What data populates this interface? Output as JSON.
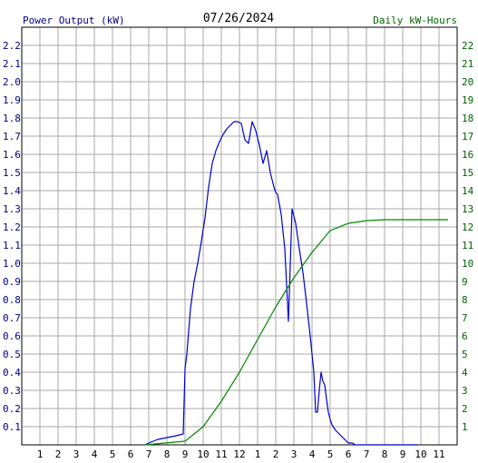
{
  "chart_data": {
    "type": "line",
    "title": "07/26/2024",
    "left_axis_label": "Power Output (kW)",
    "right_axis_label": "Daily kW-Hours",
    "x_ticks": [
      "1",
      "2",
      "3",
      "4",
      "5",
      "6",
      "7",
      "8",
      "9",
      "10",
      "11",
      "12",
      "1",
      "2",
      "3",
      "4",
      "5",
      "6",
      "7",
      "8",
      "9",
      "10",
      "11"
    ],
    "x_range_hours": [
      0,
      24
    ],
    "left_ylim": [
      0,
      2.3
    ],
    "left_ticks": [
      "0.1",
      "0.2",
      "0.3",
      "0.4",
      "0.5",
      "0.6",
      "0.7",
      "0.8",
      "0.9",
      "1.0",
      "1.1",
      "1.2",
      "1.3",
      "1.4",
      "1.5",
      "1.6",
      "1.7",
      "1.8",
      "1.9",
      "2.0",
      "2.1",
      "2.2"
    ],
    "right_ylim": [
      0,
      23
    ],
    "right_ticks": [
      "1",
      "2",
      "3",
      "4",
      "5",
      "6",
      "7",
      "8",
      "9",
      "10",
      "11",
      "12",
      "13",
      "14",
      "15",
      "16",
      "17",
      "18",
      "19",
      "20",
      "21",
      "22"
    ],
    "grid": true,
    "colors": {
      "power": "#0000cc",
      "energy": "#008800",
      "left_axis_text": "#000080",
      "right_axis_text": "#006400",
      "grid": "#aaaaaa"
    },
    "series": [
      {
        "axis": "left",
        "hours": [
          6.8,
          7.0,
          7.5,
          8.0,
          8.5,
          8.9,
          9.0,
          9.1,
          9.3,
          9.5,
          9.7,
          9.9,
          10.1,
          10.3,
          10.5,
          10.7,
          10.9,
          11.1,
          11.3,
          11.5,
          11.7,
          11.9,
          12.1,
          12.3,
          12.5,
          12.7,
          12.9,
          13.1,
          13.3,
          13.5,
          13.7,
          13.9,
          14.0,
          14.1,
          14.3,
          14.5,
          14.7,
          14.9,
          15.1,
          15.3,
          15.5,
          15.7,
          15.9,
          16.1,
          16.2,
          16.3,
          16.4,
          16.5,
          16.6,
          16.7,
          16.8,
          16.9,
          17.0,
          17.1,
          17.3,
          17.5,
          17.7,
          17.9,
          18.0,
          18.2,
          18.4,
          18.5,
          18.6,
          18.7,
          18.8,
          18.9,
          19.0,
          19.2,
          19.4,
          19.6,
          19.8,
          20.0,
          20.3,
          20.6,
          21.0,
          21.5,
          21.8
        ],
        "values": [
          0.0,
          0.01,
          0.03,
          0.04,
          0.05,
          0.06,
          0.42,
          0.5,
          0.75,
          0.9,
          1.0,
          1.12,
          1.25,
          1.42,
          1.55,
          1.62,
          1.67,
          1.71,
          1.74,
          1.76,
          1.78,
          1.78,
          1.77,
          1.68,
          1.66,
          1.78,
          1.73,
          1.65,
          1.55,
          1.62,
          1.5,
          1.42,
          1.39,
          1.38,
          1.27,
          1.08,
          0.68,
          1.3,
          1.22,
          1.08,
          0.95,
          0.78,
          0.6,
          0.4,
          0.18,
          0.18,
          0.3,
          0.4,
          0.35,
          0.33,
          0.25,
          0.18,
          0.14,
          0.11,
          0.08,
          0.06,
          0.04,
          0.02,
          0.01,
          0.01,
          0.0,
          0.0,
          0.0,
          0.0,
          0.0,
          0.0,
          0.0,
          0.0,
          0.0,
          0.0,
          0.0,
          0.0,
          0.0,
          0.0,
          0.0,
          0.0,
          0.0
        ]
      },
      {
        "axis": "right",
        "hours": [
          6.8,
          9.0,
          10.0,
          11.0,
          12.0,
          13.0,
          14.0,
          15.0,
          16.0,
          17.0,
          18.0,
          19.0,
          20.0,
          21.0,
          22.0,
          23.5
        ],
        "values": [
          0.0,
          0.2,
          1.0,
          2.4,
          4.0,
          5.8,
          7.6,
          9.2,
          10.6,
          11.8,
          12.2,
          12.35,
          12.4,
          12.4,
          12.4,
          12.4
        ]
      }
    ]
  }
}
